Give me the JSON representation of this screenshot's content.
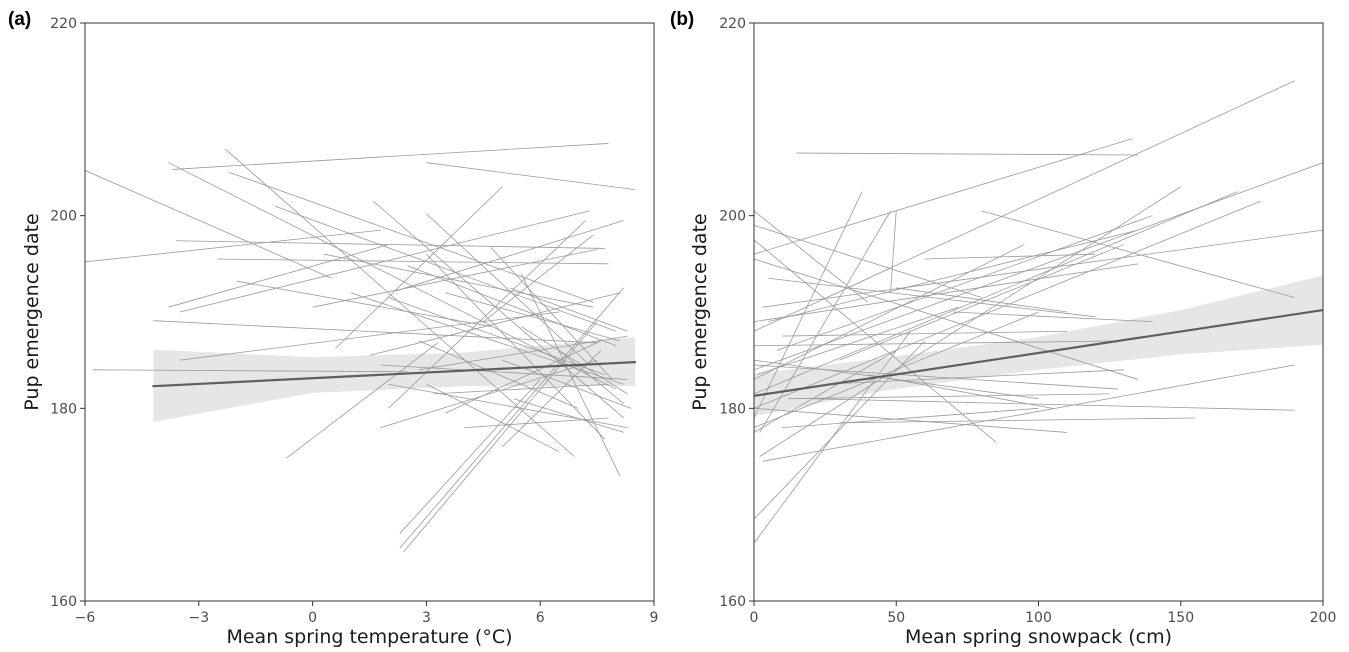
{
  "chart_data": [
    {
      "type": "line",
      "panel_label": "(a)",
      "xlabel": "Mean spring temperature (°C)",
      "ylabel": "Pup emergence date",
      "xlim": [
        -6,
        9
      ],
      "ylim": [
        160,
        220
      ],
      "xticks": [
        -6,
        -3,
        0,
        3,
        6,
        9
      ],
      "yticks": [
        160,
        180,
        200,
        220
      ],
      "xtick_labels": [
        "−6",
        "−3",
        "0",
        "3",
        "6",
        "9"
      ],
      "ytick_labels": [
        "160",
        "180",
        "200",
        "220"
      ],
      "grid": false,
      "colors": {
        "individual": "#9a9a9a",
        "fit": "#5f5f5f",
        "ribbon": "#e6e6e6",
        "frame": "#333333"
      },
      "fit": {
        "x": [
          -4.2,
          8.5
        ],
        "y": [
          182.3,
          184.8
        ],
        "ci_x": [
          -4.2,
          0,
          4,
          8.5
        ],
        "ci_lower": [
          178.6,
          181.6,
          182.3,
          182.3
        ],
        "ci_upper": [
          186.1,
          185.3,
          185.8,
          187.4
        ]
      },
      "individual_lines": [
        [
          -6.0,
          204.7,
          0.5,
          193.5
        ],
        [
          -6.0,
          195.2,
          1.8,
          198.5
        ],
        [
          -5.8,
          184.0,
          2.5,
          183.8
        ],
        [
          -4.2,
          189.1,
          7.5,
          186.8
        ],
        [
          -3.8,
          190.5,
          2.0,
          197.0
        ],
        [
          -3.8,
          205.5,
          8.0,
          182.0
        ],
        [
          -3.7,
          204.8,
          7.8,
          207.5
        ],
        [
          -3.6,
          197.4,
          7.7,
          196.6
        ],
        [
          -3.5,
          190.0,
          7.3,
          200.5
        ],
        [
          -3.5,
          185.0,
          6.5,
          190.0
        ],
        [
          -2.5,
          195.5,
          7.8,
          195.0
        ],
        [
          -2.3,
          206.9,
          6.9,
          175.0
        ],
        [
          -2.2,
          204.5,
          7.4,
          191.0
        ],
        [
          -2.0,
          193.2,
          4.7,
          188.5
        ],
        [
          -1.0,
          201.0,
          8.0,
          188.0
        ],
        [
          -0.7,
          174.8,
          3.3,
          186.8
        ],
        [
          0.0,
          190.5,
          7.5,
          196.5
        ],
        [
          0.3,
          196.0,
          7.4,
          190.5
        ],
        [
          0.6,
          186.2,
          5.0,
          203.0
        ],
        [
          1.0,
          192.0,
          8.2,
          182.5
        ],
        [
          1.5,
          185.5,
          8.1,
          192.0
        ],
        [
          1.6,
          201.5,
          8.2,
          179.0
        ],
        [
          1.8,
          178.0,
          7.5,
          185.0
        ],
        [
          1.8,
          184.5,
          8.3,
          183.0
        ],
        [
          2.0,
          191.5,
          7.7,
          183.5
        ],
        [
          2.0,
          182.5,
          8.3,
          178.0
        ],
        [
          2.0,
          180.0,
          7.2,
          199.5
        ],
        [
          2.2,
          192.2,
          8.2,
          199.5
        ],
        [
          2.3,
          167.0,
          6.0,
          183.0
        ],
        [
          2.3,
          165.5,
          8.2,
          192.5
        ],
        [
          2.4,
          165.1,
          7.5,
          189.0
        ],
        [
          2.5,
          194.8,
          8.0,
          186.5
        ],
        [
          2.8,
          184.0,
          8.3,
          187.5
        ],
        [
          2.8,
          187.0,
          7.0,
          180.0
        ],
        [
          3.0,
          182.5,
          6.5,
          175.5
        ],
        [
          3.0,
          196.0,
          7.7,
          176.8
        ],
        [
          3.0,
          200.2,
          7.3,
          184.5
        ],
        [
          3.2,
          181.5,
          7.8,
          182.5
        ],
        [
          3.5,
          179.5,
          7.6,
          187.0
        ],
        [
          3.5,
          192.0,
          8.1,
          187.0
        ],
        [
          4.0,
          178.0,
          7.8,
          179.0
        ],
        [
          4.5,
          189.0,
          7.4,
          198.0
        ],
        [
          4.7,
          196.7,
          7.9,
          183.0
        ],
        [
          5.0,
          185.0,
          8.4,
          180.0
        ],
        [
          5.0,
          176.0,
          7.6,
          186.0
        ],
        [
          5.2,
          192.5,
          8.3,
          188.0
        ],
        [
          5.3,
          181.0,
          8.2,
          177.5
        ],
        [
          5.5,
          194.0,
          8.1,
          173.0
        ],
        [
          5.5,
          188.5,
          8.3,
          181.5
        ],
        [
          3.0,
          205.5,
          8.5,
          202.7
        ],
        [
          6.5,
          186.0,
          8.2,
          180.5
        ]
      ]
    },
    {
      "type": "line",
      "panel_label": "(b)",
      "xlabel": "Mean spring snowpack (cm)",
      "ylabel": "Pup emergence date",
      "xlim": [
        0,
        200
      ],
      "ylim": [
        160,
        220
      ],
      "xticks": [
        0,
        50,
        100,
        150,
        200
      ],
      "yticks": [
        160,
        180,
        200,
        220
      ],
      "xtick_labels": [
        "0",
        "50",
        "100",
        "150",
        "200"
      ],
      "ytick_labels": [
        "160",
        "180",
        "200",
        "220"
      ],
      "grid": false,
      "colors": {
        "individual": "#9a9a9a",
        "fit": "#5f5f5f",
        "ribbon": "#e6e6e6",
        "frame": "#333333"
      },
      "fit": {
        "x": [
          0,
          200
        ],
        "y": [
          181.3,
          190.2
        ],
        "ci_x": [
          0,
          45,
          100,
          150,
          200
        ],
        "ci_lower": [
          179.2,
          181.8,
          184.0,
          185.6,
          186.6
        ],
        "ci_upper": [
          183.6,
          185.2,
          187.4,
          190.2,
          193.8
        ]
      },
      "individual_lines": [
        [
          0,
          188.0,
          190,
          214.0
        ],
        [
          15,
          206.5,
          135,
          206.3
        ],
        [
          0,
          196.0,
          133,
          208.0
        ],
        [
          0,
          184.0,
          200,
          205.5
        ],
        [
          0,
          180.0,
          178,
          201.5
        ],
        [
          0,
          200.5,
          40,
          191.0
        ],
        [
          0,
          179.0,
          38,
          202.5
        ],
        [
          0,
          166.0,
          55,
          188.0
        ],
        [
          0,
          168.5,
          60,
          187.0
        ],
        [
          1,
          183.5,
          72,
          190.5
        ],
        [
          2,
          177.5,
          48,
          200.5
        ],
        [
          2,
          175.0,
          150,
          203.0
        ],
        [
          3,
          190.5,
          200,
          198.5
        ],
        [
          0,
          181.5,
          170,
          202.5
        ],
        [
          0,
          195.5,
          135,
          183.0
        ],
        [
          0,
          197.5,
          85,
          176.5
        ],
        [
          5,
          189.0,
          135,
          198.5
        ],
        [
          8,
          186.0,
          140,
          200.0
        ],
        [
          0,
          178.0,
          100,
          190.0
        ],
        [
          0,
          183.0,
          95,
          197.0
        ],
        [
          3,
          174.5,
          190,
          184.5
        ],
        [
          20,
          181.0,
          190,
          179.8
        ],
        [
          30,
          178.5,
          155,
          179.0
        ],
        [
          10,
          178.0,
          100,
          180.0
        ],
        [
          0,
          186.5,
          130,
          187.0
        ],
        [
          5,
          193.5,
          120,
          189.5
        ],
        [
          10,
          187.5,
          110,
          188.0
        ],
        [
          25,
          182.5,
          130,
          184.0
        ],
        [
          50,
          192.5,
          110,
          190.0
        ],
        [
          48,
          192.0,
          50,
          200.5
        ],
        [
          0,
          199.0,
          80,
          191.5
        ],
        [
          0,
          189.0,
          135,
          195.0
        ],
        [
          12,
          181.0,
          125,
          181.5
        ],
        [
          0,
          185.0,
          100,
          181.0
        ],
        [
          30,
          185.0,
          130,
          197.0
        ],
        [
          70,
          190.0,
          140,
          189.0
        ],
        [
          40,
          183.5,
          105,
          180.0
        ],
        [
          80,
          200.5,
          190,
          191.5
        ],
        [
          0,
          180.0,
          110,
          177.5
        ],
        [
          60,
          195.5,
          120,
          196.0
        ],
        [
          0,
          177.5,
          50,
          186.0
        ],
        [
          0,
          184.5,
          128,
          182.0
        ]
      ]
    }
  ]
}
